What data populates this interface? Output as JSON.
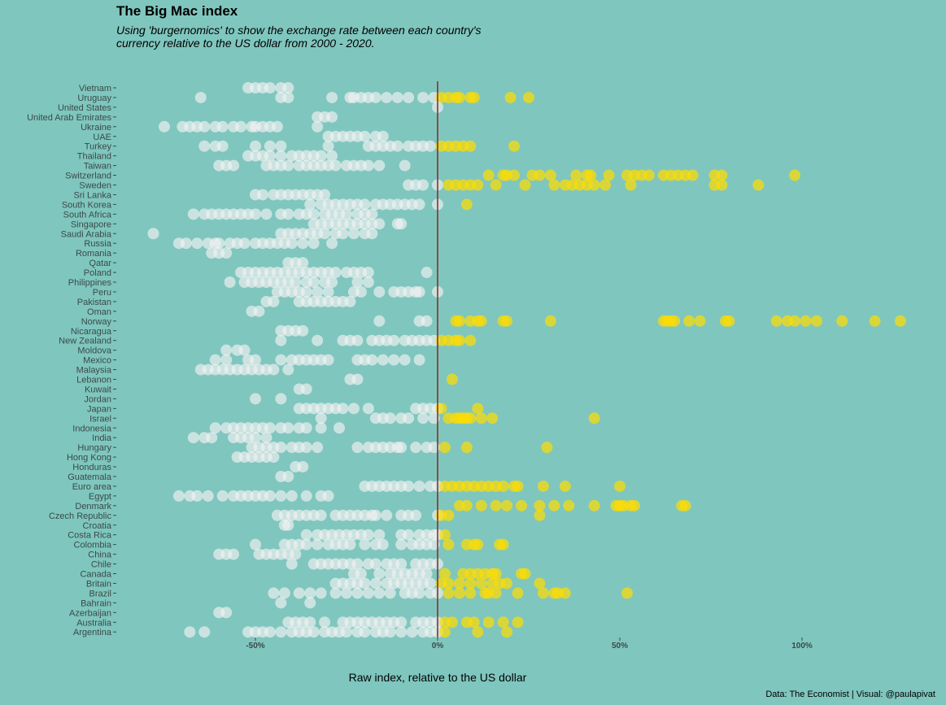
{
  "page": {
    "title": "The Big Mac index",
    "subtitle": "Using 'burgernomics' to show the exchange rate between each country's currency relative to the US dollar from 2000 - 2020.",
    "caption": "Data: The Economist | Visual: @paulapivat"
  },
  "colors": {
    "background": "#7fc6be",
    "below_zero": "#f2f2f2",
    "above_zero": "#ffdd00",
    "zero_line": "#8b2323"
  },
  "chart_data": {
    "type": "scatter",
    "title": "The Big Mac index",
    "subtitle": "Using 'burgernomics' to show the exchange rate between each country's currency relative to the US dollar from 2000 - 2020.",
    "xlabel": "Raw index, relative to the US dollar",
    "ylabel": "",
    "xlim": [
      -0.88,
      1.3
    ],
    "x_ticks": [
      -0.5,
      0,
      0.5,
      1
    ],
    "x_tick_labels": [
      "-50%",
      "0%",
      "50%",
      "100%"
    ],
    "zero_line": 0,
    "grid": false,
    "legend": "none",
    "categories": [
      "Vietnam",
      "Uruguay",
      "United States",
      "United Arab Emirates",
      "Ukraine",
      "UAE",
      "Turkey",
      "Thailand",
      "Taiwan",
      "Switzerland",
      "Sweden",
      "Sri Lanka",
      "South Korea",
      "South Africa",
      "Singapore",
      "Saudi Arabia",
      "Russia",
      "Romania",
      "Qatar",
      "Poland",
      "Philippines",
      "Peru",
      "Pakistan",
      "Oman",
      "Norway",
      "Nicaragua",
      "New Zealand",
      "Moldova",
      "Mexico",
      "Malaysia",
      "Lebanon",
      "Kuwait",
      "Jordan",
      "Japan",
      "Israel",
      "Indonesia",
      "India",
      "Hungary",
      "Hong Kong",
      "Honduras",
      "Guatemala",
      "Euro area",
      "Egypt",
      "Denmark",
      "Czech Republic",
      "Croatia",
      "Costa Rica",
      "Colombia",
      "China",
      "Chile",
      "Canada",
      "Britain",
      "Brazil",
      "Bahrain",
      "Azerbaijan",
      "Australia",
      "Argentina"
    ],
    "series": [
      {
        "country": "Vietnam",
        "values": [
          -0.52,
          -0.5,
          -0.48,
          -0.46,
          -0.43,
          -0.41
        ]
      },
      {
        "country": "Uruguay",
        "values": [
          -0.65,
          -0.43,
          -0.41,
          -0.29,
          -0.24,
          -0.23,
          -0.21,
          -0.19,
          -0.17,
          -0.14,
          -0.11,
          -0.08,
          -0.04,
          -0.01,
          0.01,
          0.03,
          0.05,
          0.06,
          0.09,
          0.1,
          0.2,
          0.25
        ]
      },
      {
        "country": "United States",
        "values": [
          0
        ]
      },
      {
        "country": "United Arab Emirates",
        "values": [
          -0.33,
          -0.31,
          -0.29
        ]
      },
      {
        "country": "Ukraine",
        "values": [
          -0.75,
          -0.7,
          -0.68,
          -0.66,
          -0.64,
          -0.61,
          -0.59,
          -0.56,
          -0.54,
          -0.51,
          -0.5,
          -0.48,
          -0.46,
          -0.44,
          -0.33
        ]
      },
      {
        "country": "UAE",
        "values": [
          -0.3,
          -0.28,
          -0.26,
          -0.24,
          -0.22,
          -0.2,
          -0.17,
          -0.15
        ]
      },
      {
        "country": "Turkey",
        "values": [
          -0.64,
          -0.61,
          -0.59,
          -0.5,
          -0.46,
          -0.43,
          -0.3,
          -0.19,
          -0.17,
          -0.15,
          -0.13,
          -0.11,
          -0.08,
          -0.06,
          -0.04,
          -0.02,
          0.01,
          0.03,
          0.05,
          0.07,
          0.09,
          0.21
        ]
      },
      {
        "country": "Thailand",
        "values": [
          -0.52,
          -0.5,
          -0.48,
          -0.46,
          -0.43,
          -0.4,
          -0.38,
          -0.36,
          -0.34,
          -0.32,
          -0.29
        ]
      },
      {
        "country": "Taiwan",
        "values": [
          -0.6,
          -0.58,
          -0.56,
          -0.47,
          -0.45,
          -0.43,
          -0.41,
          -0.38,
          -0.36,
          -0.34,
          -0.32,
          -0.3,
          -0.28,
          -0.25,
          -0.23,
          -0.21,
          -0.19,
          -0.16,
          -0.09
        ]
      },
      {
        "country": "Switzerland",
        "values": [
          0.14,
          0.18,
          0.19,
          0.21,
          0.26,
          0.28,
          0.31,
          0.38,
          0.41,
          0.42,
          0.47,
          0.52,
          0.54,
          0.56,
          0.58,
          0.62,
          0.64,
          0.66,
          0.68,
          0.7,
          0.76,
          0.78,
          0.98
        ]
      },
      {
        "country": "Sweden",
        "values": [
          -0.08,
          -0.06,
          -0.04,
          0,
          0.03,
          0.05,
          0.07,
          0.09,
          0.11,
          0.16,
          0.24,
          0.32,
          0.35,
          0.37,
          0.39,
          0.41,
          0.43,
          0.46,
          0.53,
          0.76,
          0.78,
          0.88
        ]
      },
      {
        "country": "Sri Lanka",
        "values": [
          -0.5,
          -0.48,
          -0.45,
          -0.43,
          -0.41,
          -0.39,
          -0.37,
          -0.35,
          -0.33,
          -0.31
        ]
      },
      {
        "country": "South Korea",
        "values": [
          -0.35,
          -0.32,
          -0.3,
          -0.28,
          -0.26,
          -0.24,
          -0.22,
          -0.2,
          -0.17,
          -0.15,
          -0.13,
          -0.11,
          -0.09,
          -0.07,
          -0.05,
          0,
          0.08
        ]
      },
      {
        "country": "South Africa",
        "values": [
          -0.67,
          -0.64,
          -0.62,
          -0.6,
          -0.58,
          -0.56,
          -0.54,
          -0.52,
          -0.5,
          -0.47,
          -0.43,
          -0.41,
          -0.38,
          -0.36,
          -0.34,
          -0.31,
          -0.29,
          -0.27,
          -0.25,
          -0.22,
          -0.2,
          -0.18
        ]
      },
      {
        "country": "Singapore",
        "values": [
          -0.34,
          -0.32,
          -0.3,
          -0.28,
          -0.26,
          -0.24,
          -0.22,
          -0.2,
          -0.18,
          -0.16,
          -0.11,
          -0.1
        ]
      },
      {
        "country": "Saudi Arabia",
        "values": [
          -0.78,
          -0.43,
          -0.41,
          -0.39,
          -0.37,
          -0.35,
          -0.33,
          -0.31,
          -0.28,
          -0.26,
          -0.23,
          -0.2,
          -0.18
        ]
      },
      {
        "country": "Russia",
        "values": [
          -0.71,
          -0.69,
          -0.66,
          -0.63,
          -0.61,
          -0.6,
          -0.57,
          -0.55,
          -0.53,
          -0.5,
          -0.48,
          -0.46,
          -0.44,
          -0.42,
          -0.4,
          -0.37,
          -0.34,
          -0.29
        ]
      },
      {
        "country": "Romania",
        "values": [
          -0.62,
          -0.6,
          -0.58
        ]
      },
      {
        "country": "Qatar",
        "values": [
          -0.41,
          -0.39,
          -0.37
        ]
      },
      {
        "country": "Poland",
        "values": [
          -0.54,
          -0.52,
          -0.5,
          -0.48,
          -0.46,
          -0.44,
          -0.42,
          -0.4,
          -0.38,
          -0.36,
          -0.34,
          -0.32,
          -0.3,
          -0.28,
          -0.25,
          -0.23,
          -0.21,
          -0.19,
          -0.03
        ]
      },
      {
        "country": "Philippines",
        "values": [
          -0.57,
          -0.53,
          -0.51,
          -0.49,
          -0.47,
          -0.45,
          -0.43,
          -0.41,
          -0.39,
          -0.36,
          -0.34,
          -0.31,
          -0.29,
          -0.22,
          -0.19
        ]
      },
      {
        "country": "Peru",
        "values": [
          -0.44,
          -0.42,
          -0.4,
          -0.38,
          -0.36,
          -0.33,
          -0.3,
          -0.23,
          -0.21,
          -0.16,
          -0.12,
          -0.1,
          -0.08,
          -0.06,
          -0.05,
          0
        ]
      },
      {
        "country": "Pakistan",
        "values": [
          -0.47,
          -0.45,
          -0.38,
          -0.36,
          -0.34,
          -0.32,
          -0.3,
          -0.28,
          -0.26,
          -0.24
        ]
      },
      {
        "country": "Oman",
        "values": [
          -0.51,
          -0.49
        ]
      },
      {
        "country": "Norway",
        "values": [
          -0.16,
          -0.05,
          -0.03,
          0.05,
          0.06,
          0.09,
          0.11,
          0.12,
          0.18,
          0.19,
          0.31,
          0.62,
          0.63,
          0.64,
          0.65,
          0.69,
          0.72,
          0.79,
          0.8,
          0.93,
          0.96,
          0.98,
          1.01,
          1.04,
          1.11,
          1.2,
          1.27
        ]
      },
      {
        "country": "Nicaragua",
        "values": [
          -0.43,
          -0.41,
          -0.39,
          -0.37
        ]
      },
      {
        "country": "New Zealand",
        "values": [
          -0.43,
          -0.33,
          -0.26,
          -0.24,
          -0.22,
          -0.18,
          -0.16,
          -0.14,
          -0.12,
          -0.09,
          -0.07,
          -0.05,
          -0.03,
          -0.01,
          0.01,
          0.03,
          0.05,
          0.06,
          0.09
        ]
      },
      {
        "country": "Moldova",
        "values": [
          -0.58,
          -0.55,
          -0.53
        ]
      },
      {
        "country": "Mexico",
        "values": [
          -0.61,
          -0.58,
          -0.52,
          -0.5,
          -0.43,
          -0.4,
          -0.38,
          -0.36,
          -0.34,
          -0.32,
          -0.3,
          -0.22,
          -0.2,
          -0.18,
          -0.15,
          -0.12,
          -0.09,
          -0.05
        ]
      },
      {
        "country": "Malaysia",
        "values": [
          -0.65,
          -0.63,
          -0.61,
          -0.59,
          -0.57,
          -0.55,
          -0.53,
          -0.51,
          -0.49,
          -0.47,
          -0.45,
          -0.41
        ]
      },
      {
        "country": "Lebanon",
        "values": [
          -0.24,
          -0.22,
          0.04
        ]
      },
      {
        "country": "Kuwait",
        "values": [
          -0.38,
          -0.36
        ]
      },
      {
        "country": "Jordan",
        "values": [
          -0.5,
          -0.43
        ]
      },
      {
        "country": "Japan",
        "values": [
          -0.38,
          -0.36,
          -0.34,
          -0.32,
          -0.3,
          -0.28,
          -0.26,
          -0.23,
          -0.19,
          -0.06,
          -0.04,
          -0.02,
          0,
          0.01,
          0.11
        ]
      },
      {
        "country": "Israel",
        "values": [
          -0.32,
          -0.17,
          -0.15,
          -0.13,
          -0.1,
          -0.08,
          -0.04,
          -0.01,
          0.03,
          0.05,
          0.06,
          0.07,
          0.08,
          0.09,
          0.12,
          0.15,
          0.43
        ]
      },
      {
        "country": "Indonesia",
        "values": [
          -0.61,
          -0.58,
          -0.56,
          -0.54,
          -0.52,
          -0.5,
          -0.48,
          -0.46,
          -0.43,
          -0.41,
          -0.38,
          -0.36,
          -0.32,
          -0.27
        ]
      },
      {
        "country": "India",
        "values": [
          -0.67,
          -0.64,
          -0.62,
          -0.56,
          -0.54,
          -0.52,
          -0.5,
          -0.47
        ]
      },
      {
        "country": "Hungary",
        "values": [
          -0.51,
          -0.49,
          -0.47,
          -0.45,
          -0.43,
          -0.4,
          -0.38,
          -0.36,
          -0.33,
          -0.22,
          -0.19,
          -0.17,
          -0.15,
          -0.13,
          -0.11,
          -0.1,
          -0.06,
          -0.03,
          -0.01,
          0.02,
          0.08,
          0.3
        ]
      },
      {
        "country": "Hong Kong",
        "values": [
          -0.55,
          -0.53,
          -0.51,
          -0.49,
          -0.47,
          -0.45
        ]
      },
      {
        "country": "Honduras",
        "values": [
          -0.39,
          -0.37
        ]
      },
      {
        "country": "Guatemala",
        "values": [
          -0.43,
          -0.41
        ]
      },
      {
        "country": "Euro area",
        "values": [
          -0.2,
          -0.18,
          -0.16,
          -0.14,
          -0.12,
          -0.1,
          -0.08,
          -0.05,
          -0.02,
          0,
          0.02,
          0.04,
          0.06,
          0.08,
          0.1,
          0.12,
          0.14,
          0.16,
          0.18,
          0.21,
          0.22,
          0.29,
          0.35,
          0.5
        ]
      },
      {
        "country": "Egypt",
        "values": [
          -0.71,
          -0.68,
          -0.66,
          -0.63,
          -0.59,
          -0.56,
          -0.54,
          -0.52,
          -0.5,
          -0.48,
          -0.46,
          -0.43,
          -0.4,
          -0.36,
          -0.32,
          -0.3
        ]
      },
      {
        "country": "Denmark",
        "values": [
          0.06,
          0.08,
          0.12,
          0.16,
          0.19,
          0.23,
          0.28,
          0.32,
          0.36,
          0.43,
          0.49,
          0.5,
          0.51,
          0.53,
          0.54,
          0.67,
          0.68
        ]
      },
      {
        "country": "Czech Republic",
        "values": [
          -0.44,
          -0.42,
          -0.4,
          -0.38,
          -0.36,
          -0.34,
          -0.32,
          -0.28,
          -0.26,
          -0.24,
          -0.22,
          -0.2,
          -0.18,
          -0.17,
          -0.14,
          -0.1,
          -0.08,
          -0.06,
          0,
          0.01,
          0.03,
          0.28
        ]
      },
      {
        "country": "Croatia",
        "values": [
          -0.42,
          -0.41
        ]
      },
      {
        "country": "Costa Rica",
        "values": [
          -0.36,
          -0.33,
          -0.31,
          -0.29,
          -0.27,
          -0.25,
          -0.23,
          -0.21,
          -0.19,
          -0.16,
          -0.1,
          -0.08,
          -0.05,
          -0.03,
          -0.01,
          0,
          0.02
        ]
      },
      {
        "country": "Colombia",
        "values": [
          -0.5,
          -0.42,
          -0.4,
          -0.38,
          -0.36,
          -0.33,
          -0.3,
          -0.28,
          -0.26,
          -0.24,
          -0.2,
          -0.17,
          -0.15,
          -0.1,
          -0.07,
          -0.05,
          -0.03,
          -0.01,
          0.03,
          0.08,
          0.1,
          0.11,
          0.17,
          0.18
        ]
      },
      {
        "country": "China",
        "values": [
          -0.6,
          -0.58,
          -0.56,
          -0.49,
          -0.47,
          -0.45,
          -0.43,
          -0.41,
          -0.39
        ]
      },
      {
        "country": "Chile",
        "values": [
          -0.4,
          -0.34,
          -0.32,
          -0.3,
          -0.28,
          -0.26,
          -0.24,
          -0.22,
          -0.19,
          -0.17,
          -0.14,
          -0.12,
          -0.1,
          -0.06,
          -0.04,
          -0.02,
          0
        ]
      },
      {
        "country": "Canada",
        "values": [
          -0.23,
          -0.21,
          -0.16,
          -0.13,
          -0.11,
          -0.09,
          -0.07,
          -0.05,
          -0.03,
          0.02,
          0.07,
          0.09,
          0.11,
          0.13,
          0.15,
          0.16,
          0.23,
          0.24
        ]
      },
      {
        "country": "Britain",
        "values": [
          -0.28,
          -0.26,
          -0.24,
          -0.22,
          -0.2,
          -0.17,
          -0.14,
          -0.12,
          -0.1,
          -0.08,
          -0.06,
          -0.04,
          -0.02,
          0.01,
          0.03,
          0.06,
          0.09,
          0.12,
          0.15,
          0.17,
          0.19,
          0.28
        ]
      },
      {
        "country": "Brazil",
        "values": [
          -0.45,
          -0.42,
          -0.38,
          -0.35,
          -0.32,
          -0.28,
          -0.25,
          -0.22,
          -0.19,
          -0.16,
          -0.13,
          -0.09,
          -0.07,
          -0.05,
          -0.02,
          0,
          0.03,
          0.06,
          0.09,
          0.13,
          0.14,
          0.16,
          0.22,
          0.29,
          0.32,
          0.33,
          0.35,
          0.52
        ]
      },
      {
        "country": "Bahrain",
        "values": [
          -0.43,
          -0.35
        ]
      },
      {
        "country": "Azerbaijan",
        "values": [
          -0.6,
          -0.58
        ]
      },
      {
        "country": "Australia",
        "values": [
          -0.41,
          -0.39,
          -0.37,
          -0.35,
          -0.31,
          -0.26,
          -0.24,
          -0.22,
          -0.2,
          -0.18,
          -0.16,
          -0.14,
          -0.12,
          -0.1,
          -0.06,
          -0.04,
          -0.02,
          0,
          0.02,
          0.04,
          0.08,
          0.1,
          0.14,
          0.18,
          0.22
        ]
      },
      {
        "country": "Argentina",
        "values": [
          -0.68,
          -0.64,
          -0.52,
          -0.5,
          -0.48,
          -0.46,
          -0.43,
          -0.4,
          -0.38,
          -0.36,
          -0.34,
          -0.31,
          -0.29,
          -0.27,
          -0.25,
          -0.22,
          -0.2,
          -0.17,
          -0.15,
          -0.13,
          -0.1,
          -0.07,
          -0.04,
          -0.02,
          0,
          0.02,
          0.11,
          0.19
        ]
      }
    ]
  }
}
